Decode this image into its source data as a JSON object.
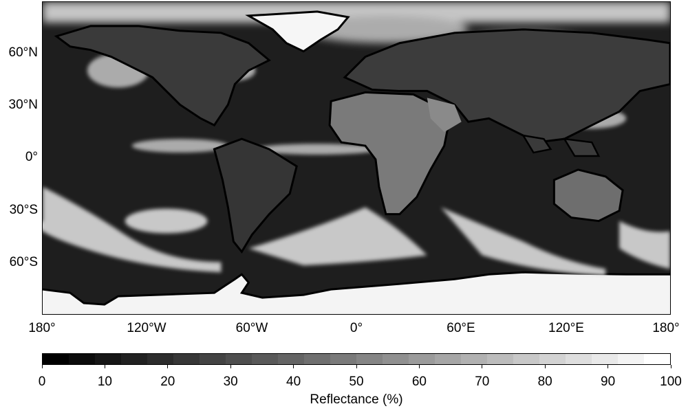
{
  "map": {
    "lat_labels": [
      "60°N",
      "30°N",
      "0°",
      "30°S",
      "60°S"
    ],
    "lat_values": [
      60,
      30,
      0,
      -30,
      -60
    ],
    "lon_labels": [
      "180°",
      "120°W",
      "60°W",
      "0°",
      "60°E",
      "120°E",
      "180°"
    ],
    "lon_values": [
      -180,
      -120,
      -60,
      0,
      60,
      120,
      180
    ],
    "extent": {
      "lon": [
        -180,
        180
      ],
      "lat": [
        -90,
        90
      ]
    },
    "projection": "equirectangular",
    "coastlines": "black"
  },
  "colorbar": {
    "label": "Reflectance (%)",
    "ticks": [
      "0",
      "10",
      "20",
      "30",
      "40",
      "50",
      "60",
      "70",
      "80",
      "90",
      "100"
    ],
    "range": [
      0,
      100
    ],
    "bins": 24,
    "colormap": "grayscale",
    "min_color": "#000000",
    "max_color": "#ffffff"
  }
}
